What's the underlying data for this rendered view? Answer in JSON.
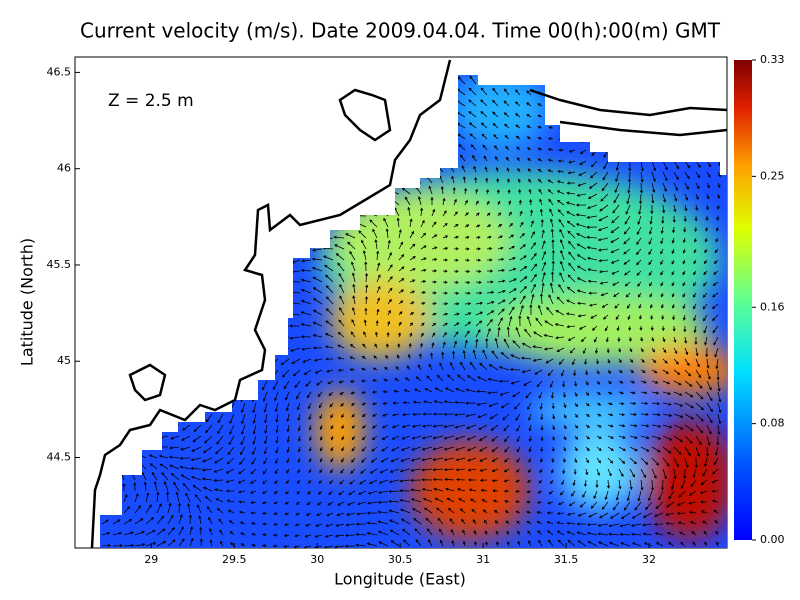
{
  "chart_data": {
    "type": "map",
    "title": "Current velocity (m/s). Date 2009.04.04. Time 00(h):00(m) GMT",
    "annotation": "Z = 2.5 m",
    "x_label": "Longitude (East)",
    "y_label": "Latitude (North)",
    "xlim": [
      28.54,
      32.47
    ],
    "xticks": [
      29,
      29.5,
      30,
      30.5,
      31,
      31.5,
      32
    ],
    "ylim": [
      44.03,
      46.58
    ],
    "yticks": [
      44.5,
      45,
      45.5,
      46,
      46.5
    ],
    "colorbar": {
      "lim": [
        0,
        0.33
      ],
      "ticks": [
        {
          "value": 0,
          "label": "0.00"
        },
        {
          "value": 0.08,
          "label": "0.08"
        },
        {
          "value": 0.16,
          "label": "0.16"
        },
        {
          "value": 0.25,
          "label": "0.25"
        },
        {
          "value": 0.33,
          "label": "0.33"
        }
      ]
    }
  }
}
